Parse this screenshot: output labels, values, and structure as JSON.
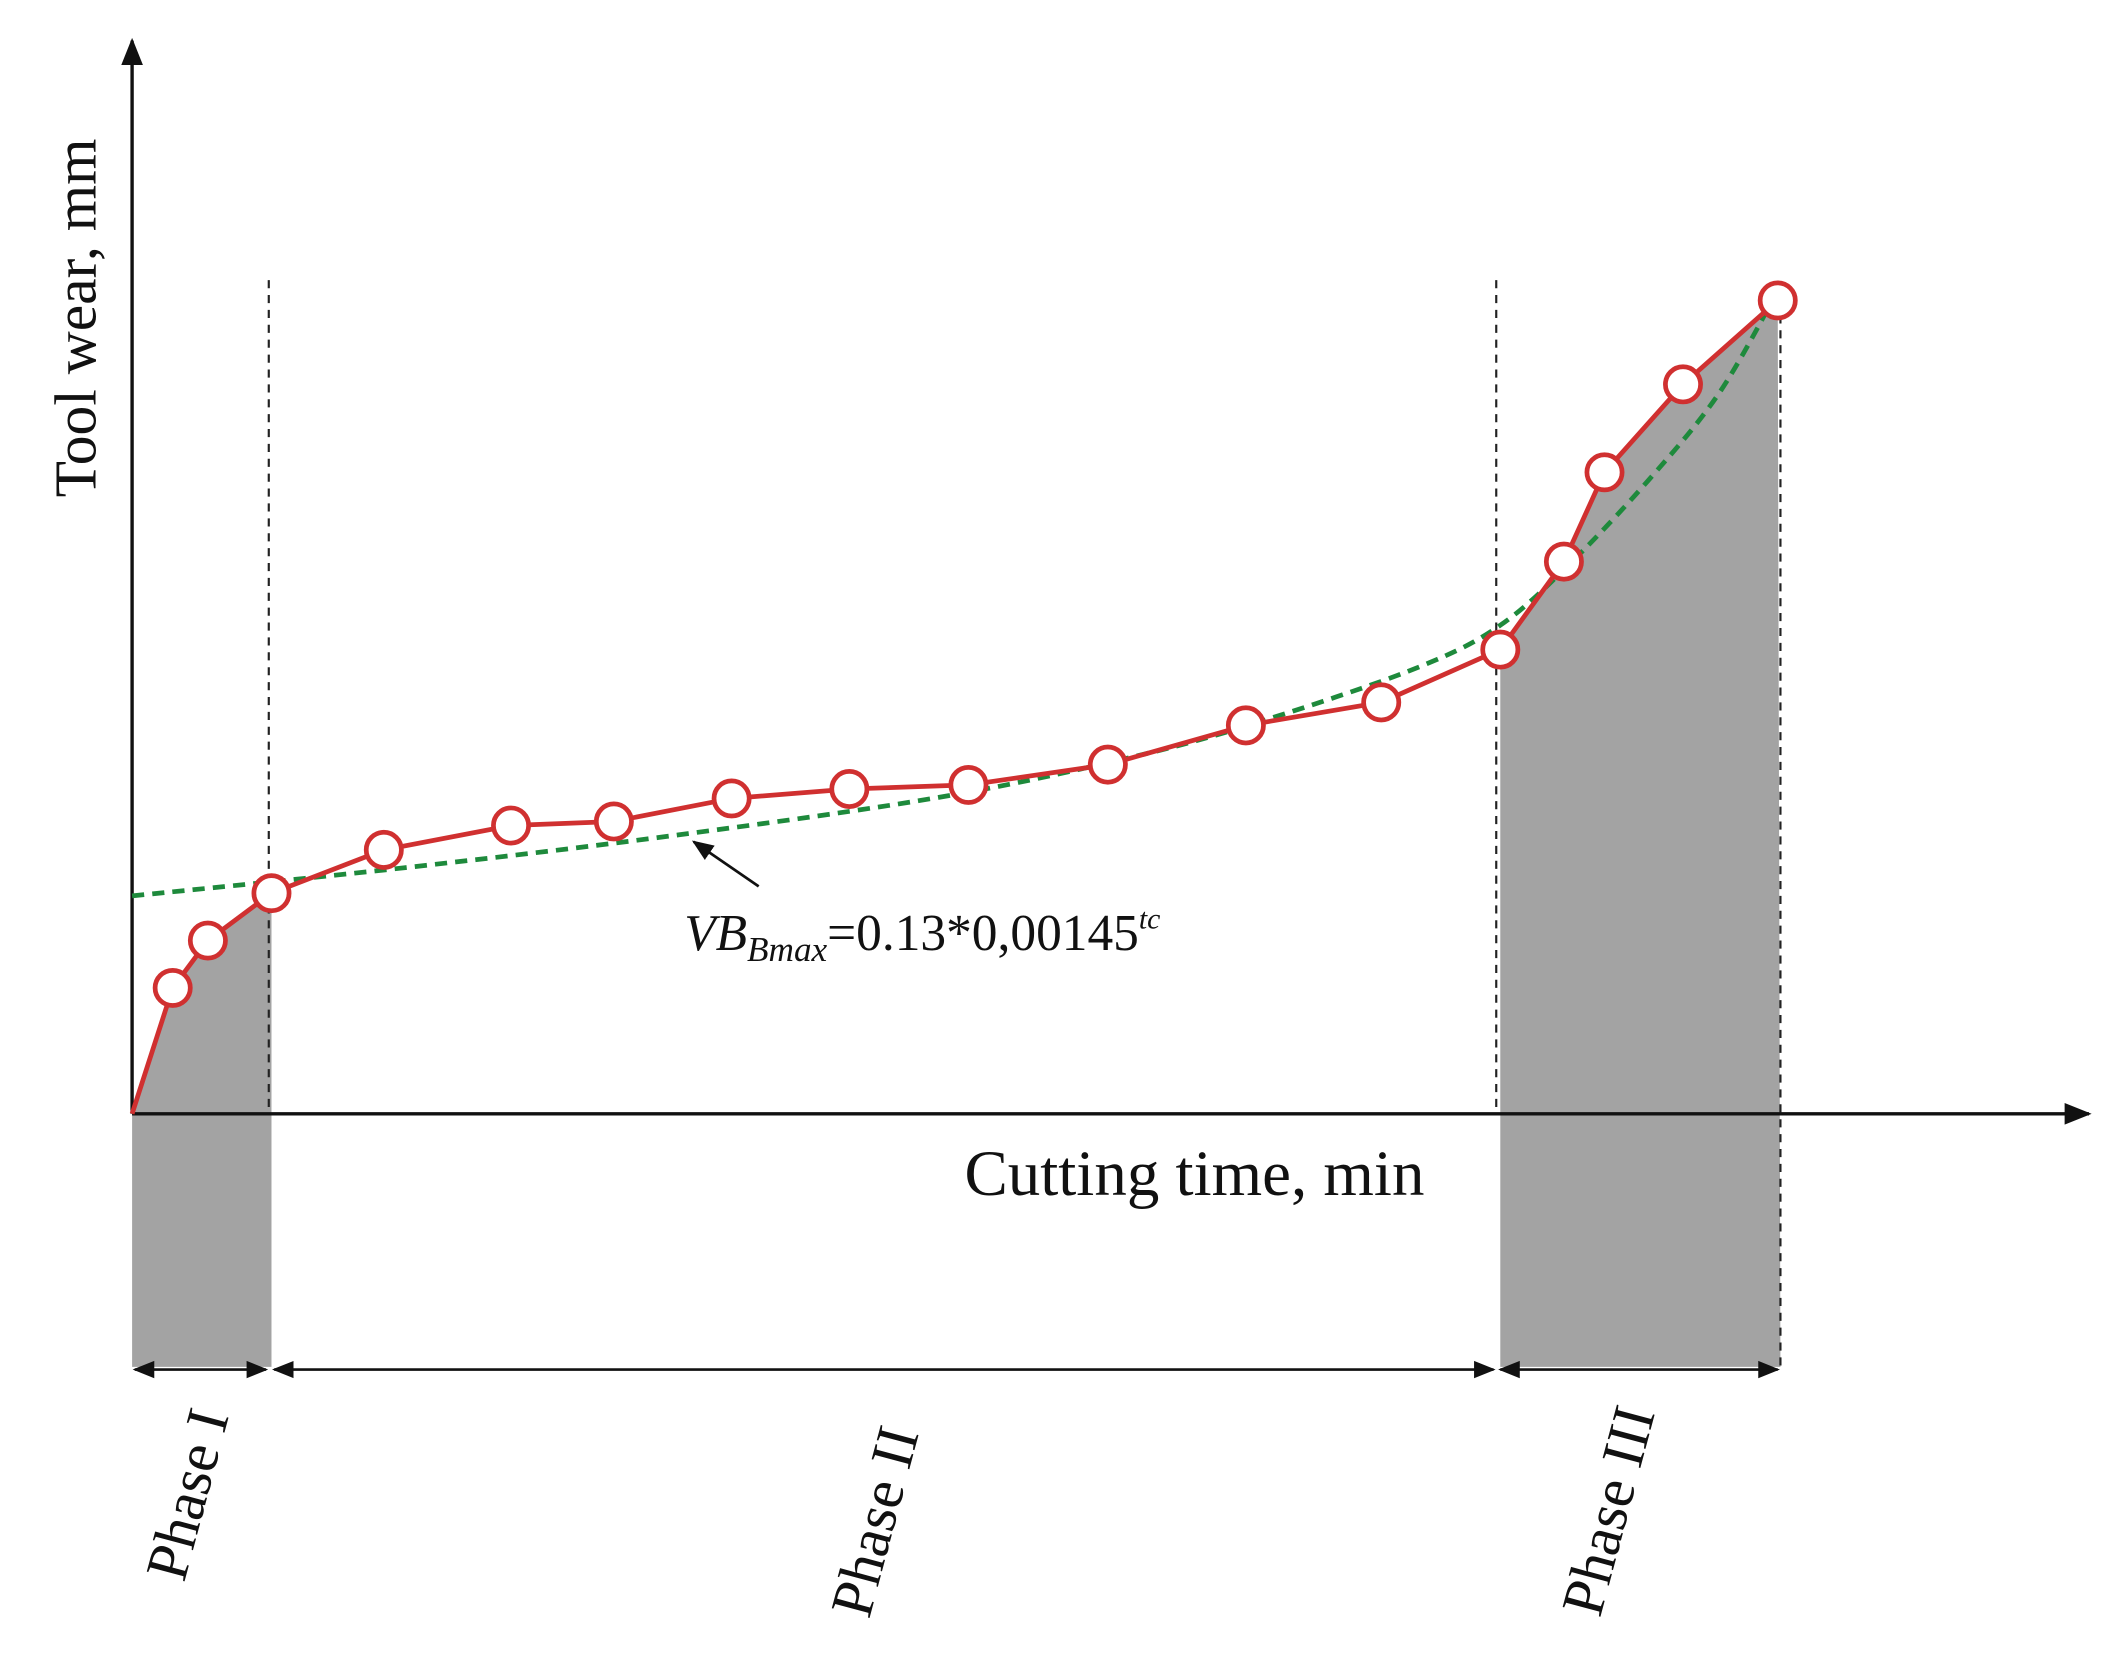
{
  "axes": {
    "y_label": "Tool wear, mm",
    "x_label": "Cutting time, min"
  },
  "equation": {
    "lhs": "VB",
    "subscript": "Bmax",
    "rhs": "=0.13*0,00145",
    "superscript": "tc"
  },
  "phases": [
    "Phase I",
    "Phase II",
    "Phase III"
  ]
}
